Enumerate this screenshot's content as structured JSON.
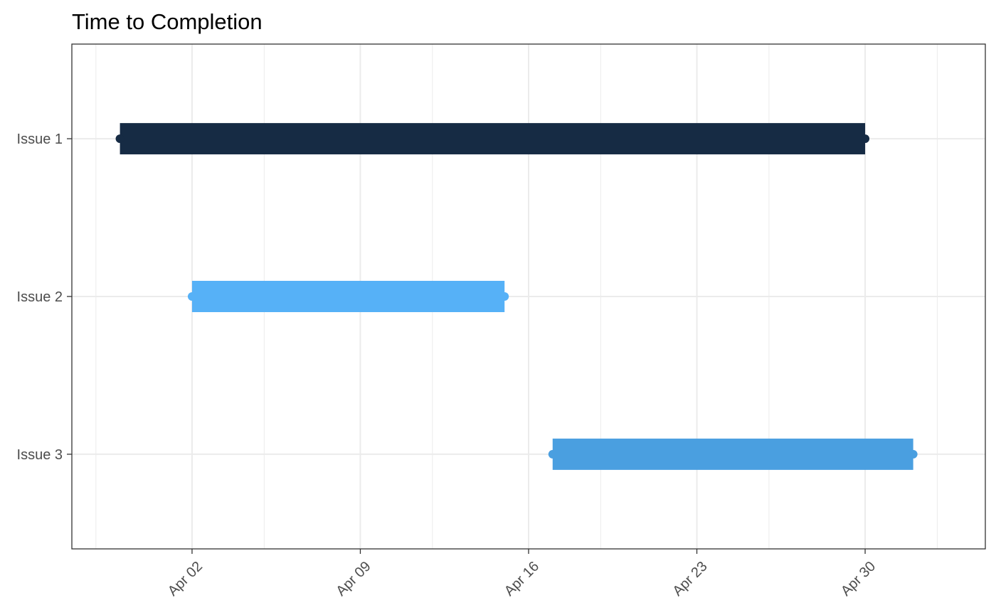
{
  "chart_data": {
    "type": "gantt",
    "title": "Time to Completion",
    "xlabel": "",
    "ylabel": "",
    "x_axis": {
      "type": "date",
      "range": [
        "2018-03-28",
        "2018-05-05"
      ],
      "ticks": [
        {
          "date": "2018-04-02",
          "label": "Apr 02"
        },
        {
          "date": "2018-04-09",
          "label": "Apr 09"
        },
        {
          "date": "2018-04-16",
          "label": "Apr 16"
        },
        {
          "date": "2018-04-23",
          "label": "Apr 23"
        },
        {
          "date": "2018-04-30",
          "label": "Apr 30"
        }
      ],
      "minor_ticks": [
        "2018-03-29",
        "2018-04-05",
        "2018-04-12",
        "2018-04-19",
        "2018-04-26",
        "2018-05-03"
      ],
      "tick_label_rotation": 45
    },
    "categories": [
      "Issue 1",
      "Issue 2",
      "Issue 3"
    ],
    "series": [
      {
        "category": "Issue 1",
        "start": "2018-03-30",
        "end": "2018-04-30",
        "color": "#162b44"
      },
      {
        "category": "Issue 2",
        "start": "2018-04-02",
        "end": "2018-04-15",
        "color": "#56b1f7"
      },
      {
        "category": "Issue 3",
        "start": "2018-04-17",
        "end": "2018-05-02",
        "color": "#4a9fe0"
      }
    ],
    "grid": true,
    "legend": "none"
  }
}
